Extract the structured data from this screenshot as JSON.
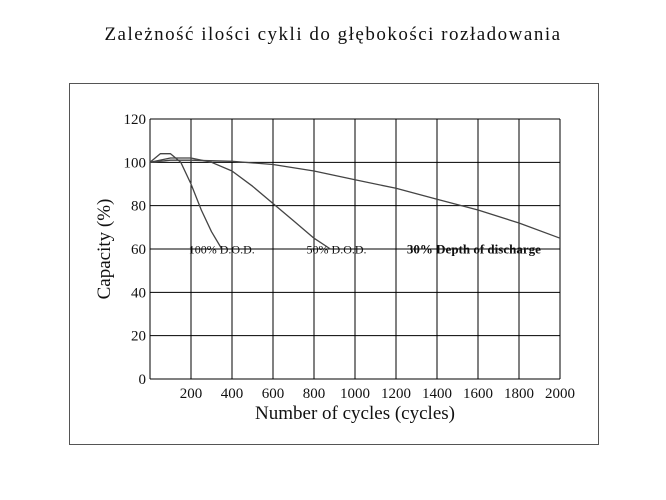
{
  "page": {
    "title": "Zależność ilości cykli do głębokości rozładowania"
  },
  "chart_data": {
    "type": "line",
    "title": "",
    "xlabel": "Number of cycles (cycles)",
    "ylabel": "Capacity (%)",
    "xlim": [
      0,
      2000
    ],
    "ylim": [
      0,
      120
    ],
    "x_ticks": [
      0,
      200,
      400,
      600,
      800,
      1000,
      1200,
      1400,
      1600,
      1800,
      2000
    ],
    "x_tick_labels": [
      "",
      "200",
      "400",
      "600",
      "800",
      "1000",
      "1200",
      "1400",
      "1600",
      "1800",
      "2000"
    ],
    "y_ticks": [
      0,
      20,
      40,
      60,
      80,
      100,
      120
    ],
    "y_tick_labels": [
      "0",
      "20",
      "40",
      "60",
      "80",
      "100",
      "120"
    ],
    "origin_label": "0",
    "grid": true,
    "line_color": "#444444",
    "grid_color": "#000000",
    "series": [
      {
        "name": "100% D.O.D.",
        "x": [
          0,
          50,
          100,
          150,
          200,
          250,
          300,
          350
        ],
        "y": [
          100,
          104,
          104,
          100,
          90,
          78,
          68,
          60
        ]
      },
      {
        "name": "50% D.O.D.",
        "x": [
          0,
          100,
          200,
          300,
          400,
          500,
          600,
          700,
          800,
          880
        ],
        "y": [
          100,
          102,
          102,
          100,
          96,
          89,
          81,
          73,
          65,
          60
        ]
      },
      {
        "name": "30% Depth of discharge",
        "x": [
          0,
          100,
          200,
          400,
          600,
          800,
          1000,
          1200,
          1400,
          1600,
          1800,
          2000
        ],
        "y": [
          100,
          101,
          101,
          100.5,
          99,
          96,
          92,
          88,
          83,
          78,
          72,
          65
        ]
      }
    ],
    "annotations": [
      {
        "text": "100% D.O.D.",
        "x": 350,
        "y": 58,
        "bold": false
      },
      {
        "text": "50% D.O.D.",
        "x": 910,
        "y": 58,
        "bold": false
      },
      {
        "text": "30% Depth of discharge",
        "x": 1580,
        "y": 58,
        "bold": true
      }
    ]
  }
}
